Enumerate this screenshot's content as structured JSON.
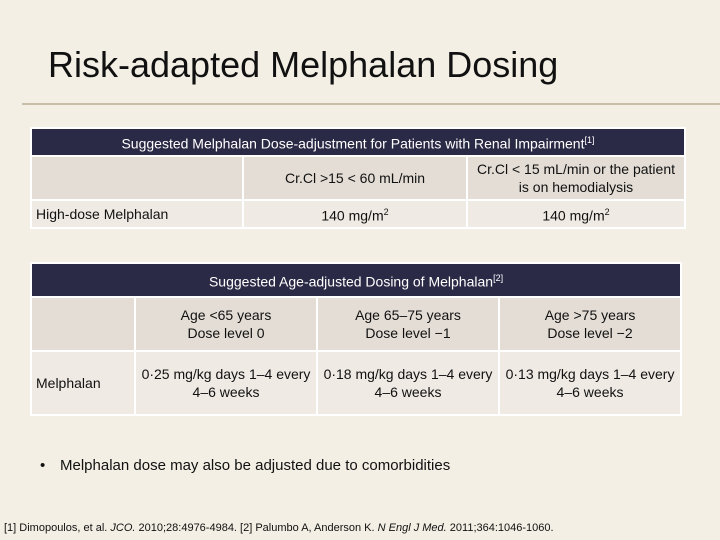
{
  "title": "Risk-adapted Melphalan Dosing",
  "renal_table": {
    "header": "Suggested Melphalan Dose-adjustment for Patients with Renal Impairment",
    "header_ref": "[1]",
    "columns": [
      "",
      "Cr.Cl >15 < 60 mL/min",
      "Cr.Cl < 15 mL/min or the patient is on hemodialysis"
    ],
    "row": {
      "label": "High-dose Melphalan",
      "dose1_base": "140 mg/m",
      "dose1_sup": "2",
      "dose2_base": "140 mg/m",
      "dose2_sup": "2"
    }
  },
  "age_table": {
    "header": "Suggested Age-adjusted Dosing of Melphalan",
    "header_ref": "[2]",
    "columns": [
      {
        "line1": "Age <65 years",
        "line2": "Dose level 0"
      },
      {
        "line1": "Age 65–75 years",
        "line2": "Dose level −1"
      },
      {
        "line1": "Age >75 years",
        "line2": "Dose level −2"
      }
    ],
    "row": {
      "label": "Melphalan",
      "cells": [
        "0·25 mg/kg days 1–4 every 4–6 weeks",
        "0·18 mg/kg days 1–4 every 4–6 weeks",
        "0·13 mg/kg days 1–4 every 4–6 weeks"
      ]
    }
  },
  "bullet": {
    "marker": "•",
    "text": "Melphalan dose may also be adjusted due to comorbidities"
  },
  "references": {
    "r1_prefix": "[1] Dimopoulos, et al. ",
    "r1_journal": "JCO.",
    "r1_rest": " 2010;28:4976-4984. [2] Palumbo A, Anderson K. ",
    "r2_journal": "N Engl J Med.",
    "r2_rest": " 2011;364:1046-1060."
  }
}
